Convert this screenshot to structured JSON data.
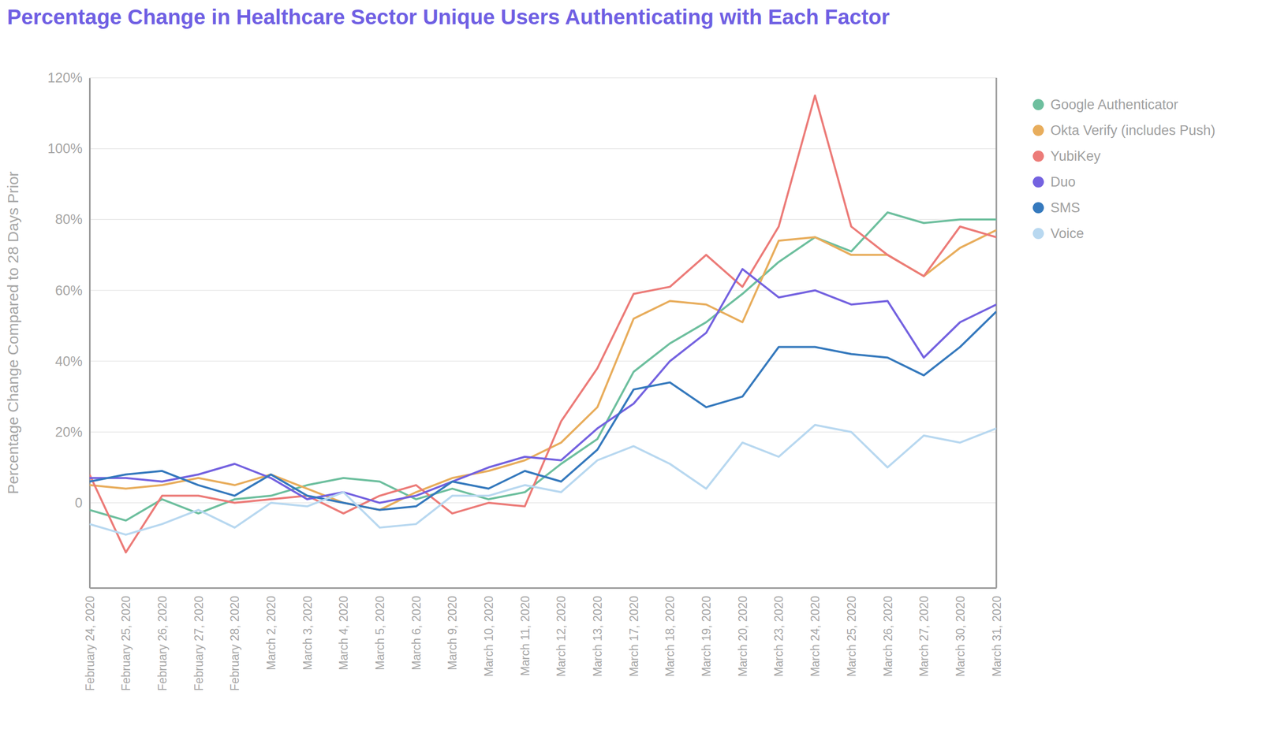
{
  "chart_data": {
    "type": "line",
    "title": "Percentage Change in Healthcare Sector Unique Users Authenticating with Each Factor",
    "y_label": "Percentage Change Compared to 28 Days Prior",
    "categories": [
      "February 24, 2020",
      "February 25, 2020",
      "February 26, 2020",
      "February 27, 2020",
      "February 28, 2020",
      "March 2, 2020",
      "March 3, 2020",
      "March 4, 2020",
      "March 5, 2020",
      "March 6, 2020",
      "March 9, 2020",
      "March 10, 2020",
      "March 11, 2020",
      "March 12, 2020",
      "March 13, 2020",
      "March 17, 2020",
      "March 18, 2020",
      "March 19, 2020",
      "March 20, 2020",
      "March 23, 2020",
      "March 24, 2020",
      "March 25, 2020",
      "March 26, 2020",
      "March 27, 2020",
      "March 30, 2020",
      "March 31, 2020"
    ],
    "series": [
      {
        "name": "Google Authenticator",
        "color": "#6dbf9e",
        "values": [
          -2,
          -5,
          1,
          -3,
          1,
          2,
          5,
          7,
          6,
          1,
          4,
          1,
          3,
          11,
          18,
          37,
          45,
          51,
          59,
          68,
          75,
          71,
          82,
          79,
          80,
          80
        ]
      },
      {
        "name": "Okta Verify (includes Push)",
        "color": "#e8ad5c",
        "values": [
          5,
          4,
          5,
          7,
          5,
          8,
          4,
          0,
          -2,
          3,
          7,
          9,
          12,
          17,
          27,
          52,
          57,
          56,
          51,
          74,
          75,
          70,
          70,
          64,
          72,
          77
        ]
      },
      {
        "name": "YubiKey",
        "color": "#ec7b78",
        "values": [
          8,
          -14,
          2,
          2,
          0,
          1,
          2,
          -3,
          2,
          5,
          -3,
          0,
          -1,
          23,
          38,
          59,
          61,
          70,
          61,
          78,
          115,
          78,
          70,
          64,
          78,
          75
        ]
      },
      {
        "name": "Duo",
        "color": "#7462e0",
        "values": [
          7,
          7,
          6,
          8,
          11,
          7,
          1,
          3,
          0,
          2,
          6,
          10,
          13,
          12,
          21,
          28,
          40,
          48,
          66,
          58,
          60,
          56,
          57,
          41,
          51,
          56
        ]
      },
      {
        "name": "SMS",
        "color": "#3579bd",
        "values": [
          6,
          8,
          9,
          5,
          2,
          8,
          2,
          0,
          -2,
          -1,
          6,
          4,
          9,
          6,
          15,
          32,
          34,
          27,
          30,
          44,
          44,
          42,
          41,
          36,
          44,
          54
        ]
      },
      {
        "name": "Voice",
        "color": "#b8d8f0",
        "values": [
          -6,
          -9,
          -6,
          -2,
          -7,
          0,
          -1,
          3,
          -7,
          -6,
          2,
          2,
          5,
          3,
          12,
          16,
          11,
          4,
          17,
          13,
          22,
          20,
          10,
          19,
          17,
          21
        ]
      }
    ],
    "ylim": [
      -24,
      120
    ],
    "yticks": [
      0,
      {
        "value": 20,
        "label": "20%"
      },
      {
        "value": 40,
        "label": "40%"
      },
      {
        "value": 60,
        "label": "60%"
      },
      {
        "value": 80,
        "label": "80%"
      },
      {
        "value": 100,
        "label": "100%"
      },
      {
        "value": 120,
        "label": "120%"
      }
    ],
    "grid": true,
    "legend": "right"
  }
}
